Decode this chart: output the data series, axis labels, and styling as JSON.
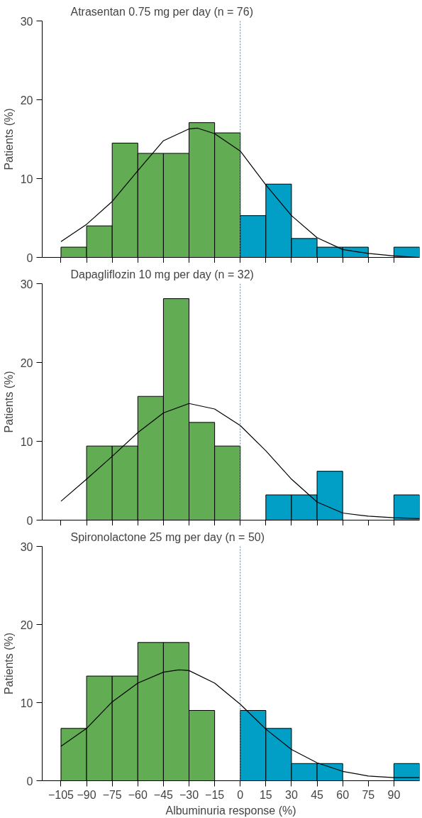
{
  "chart_data": [
    {
      "type": "histogram",
      "title": "Atrasentan 0.75 mg per day (n = 76)",
      "ylabel": "Patients (%)",
      "bins": [
        -105,
        -90,
        -75,
        -60,
        -45,
        -30,
        -15,
        0,
        15,
        30,
        45,
        60,
        75,
        90,
        105
      ],
      "values": [
        1.3,
        4.0,
        14.5,
        13.2,
        13.2,
        17.1,
        15.8,
        5.3,
        9.3,
        2.4,
        1.3,
        1.3,
        0,
        1.3
      ],
      "colors": [
        "#62ad53",
        "#62ad53",
        "#62ad53",
        "#62ad53",
        "#62ad53",
        "#62ad53",
        "#62ad53",
        "#019fc6",
        "#019fc6",
        "#019fc6",
        "#019fc6",
        "#019fc6",
        "#019fc6",
        "#019fc6"
      ],
      "series": [
        {
          "type": "line",
          "color": "#000000",
          "x": [
            -105,
            -90,
            -75,
            -60,
            -45,
            -30,
            -25,
            -15,
            0,
            15,
            30,
            45,
            60,
            75,
            90,
            105
          ],
          "values": [
            2.0,
            4.2,
            7.1,
            11.0,
            14.8,
            16.3,
            16.4,
            15.7,
            13.5,
            9.2,
            5.3,
            2.5,
            1.0,
            0.5,
            0.2,
            0.0
          ]
        }
      ],
      "xlim": [
        -116,
        105
      ],
      "xticks": [
        -105,
        -90,
        -75,
        -60,
        -45,
        -30,
        -15,
        0,
        15,
        30,
        45,
        60,
        75,
        90
      ],
      "ylim": [
        0,
        30
      ],
      "yticks": [
        0,
        10,
        20,
        30
      ],
      "tick_labels": "y",
      "ref_lines": [
        {
          "axis": "x",
          "value": 0,
          "color": "#5a7f86",
          "line_style": "dotted"
        }
      ]
    },
    {
      "type": "histogram",
      "title": "Dapagliflozin 10 mg per day (n = 32)",
      "ylabel": "Patients (%)",
      "bins": [
        -105,
        -90,
        -75,
        -60,
        -45,
        -30,
        -15,
        0,
        15,
        30,
        45,
        60,
        75,
        90,
        105
      ],
      "values": [
        0,
        9.4,
        9.4,
        15.7,
        28.1,
        12.4,
        9.4,
        0,
        3.2,
        3.2,
        6.2,
        0,
        0,
        3.2
      ],
      "colors": [
        "#62ad53",
        "#62ad53",
        "#62ad53",
        "#62ad53",
        "#62ad53",
        "#62ad53",
        "#62ad53",
        "#019fc6",
        "#019fc6",
        "#019fc6",
        "#019fc6",
        "#019fc6",
        "#019fc6",
        "#019fc6"
      ],
      "series": [
        {
          "type": "line",
          "color": "#000000",
          "x": [
            -105,
            -90,
            -75,
            -60,
            -45,
            -30,
            -15,
            0,
            15,
            30,
            45,
            60,
            75,
            90,
            105
          ],
          "values": [
            2.4,
            5.2,
            8.1,
            11.1,
            13.6,
            14.8,
            14.1,
            12.0,
            8.8,
            5.2,
            2.3,
            0.9,
            0.5,
            0.3,
            0.2
          ]
        }
      ],
      "xlim": [
        -116,
        105
      ],
      "xticks": [
        -105,
        -90,
        -75,
        -60,
        -45,
        -30,
        -15,
        0,
        15,
        30,
        45,
        60,
        75,
        90
      ],
      "ylim": [
        0,
        30
      ],
      "yticks": [
        0,
        10,
        20,
        30
      ],
      "tick_labels": "y",
      "ref_lines": [
        {
          "axis": "x",
          "value": 0,
          "color": "#5a7f86",
          "line_style": "dotted"
        }
      ]
    },
    {
      "type": "histogram",
      "title": "Spironolactone 25 mg per day (n = 50)",
      "ylabel": "Patients (%)",
      "xlabel": "Albuminuria response (%)",
      "bins": [
        -105,
        -90,
        -75,
        -60,
        -45,
        -30,
        -15,
        0,
        15,
        30,
        45,
        60,
        75,
        90,
        105
      ],
      "values": [
        6.7,
        13.4,
        13.4,
        17.7,
        17.7,
        9.0,
        0,
        9.0,
        6.7,
        2.2,
        2.2,
        0,
        0,
        2.2
      ],
      "colors": [
        "#62ad53",
        "#62ad53",
        "#62ad53",
        "#62ad53",
        "#62ad53",
        "#62ad53",
        "#62ad53",
        "#019fc6",
        "#019fc6",
        "#019fc6",
        "#019fc6",
        "#019fc6",
        "#019fc6",
        "#019fc6"
      ],
      "series": [
        {
          "type": "line",
          "color": "#000000",
          "x": [
            -105,
            -90,
            -75,
            -60,
            -45,
            -36,
            -30,
            -15,
            0,
            15,
            30,
            45,
            60,
            75,
            90,
            105
          ],
          "values": [
            4.4,
            6.7,
            10.1,
            12.5,
            13.9,
            14.2,
            14.1,
            12.5,
            9.8,
            6.6,
            4.0,
            2.3,
            1.2,
            0.6,
            0.4,
            0.4
          ]
        }
      ],
      "xlim": [
        -116,
        105
      ],
      "xticks": [
        -105,
        -90,
        -75,
        -60,
        -45,
        -30,
        -15,
        0,
        15,
        30,
        45,
        60,
        75,
        90
      ],
      "ylim": [
        0,
        30
      ],
      "yticks": [
        0,
        10,
        20,
        30
      ],
      "ref_lines": [
        {
          "axis": "x",
          "value": 0,
          "color": "#5a7f86",
          "line_style": "dotted"
        }
      ]
    }
  ]
}
